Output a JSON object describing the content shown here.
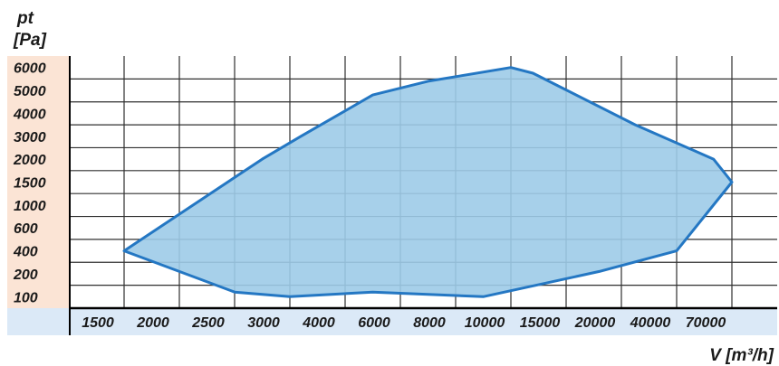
{
  "chart_data": {
    "type": "area",
    "title": "",
    "ylabel_lines": [
      "pt",
      "[Pa]"
    ],
    "xlabel": "V [m³/h]",
    "x_ticks": [
      "1500",
      "2000",
      "2500",
      "3000",
      "4000",
      "6000",
      "8000",
      "10000",
      "15000",
      "20000",
      "40000",
      "70000"
    ],
    "y_ticks": [
      "100",
      "200",
      "400",
      "600",
      "1000",
      "1500",
      "2000",
      "3000",
      "4000",
      "5000",
      "6000"
    ],
    "x_scale": "categorical (non-uniform)",
    "y_scale": "categorical (non-uniform)",
    "grid": true,
    "series": [
      {
        "fill_color": "#9dcbe8",
        "stroke_color": "#2477c3",
        "boundary": [
          {
            "x": 1500,
            "y": 400
          },
          {
            "x": 2750,
            "y": 2000
          },
          {
            "x": 3200,
            "y": 3000
          },
          {
            "x": 5000,
            "y": 4800
          },
          {
            "x": 7000,
            "y": 5400
          },
          {
            "x": 10000,
            "y": 6000
          },
          {
            "x": 12000,
            "y": 5750
          },
          {
            "x": 25000,
            "y": 3500
          },
          {
            "x": 60000,
            "y": 2000
          },
          {
            "x": 70000,
            "y": 1500
          },
          {
            "x": 40000,
            "y": 400
          },
          {
            "x": 18000,
            "y": 220
          },
          {
            "x": 9000,
            "y": 100
          },
          {
            "x": 5000,
            "y": 120
          },
          {
            "x": 3000,
            "y": 100
          },
          {
            "x": 2500,
            "y": 120
          },
          {
            "x": 1500,
            "y": 400
          }
        ]
      }
    ]
  },
  "colors": {
    "label_background": "#fbe4d5",
    "xaxis_background": "#dbe9f7",
    "grid": "#303030",
    "text": "#1a1a1a"
  }
}
